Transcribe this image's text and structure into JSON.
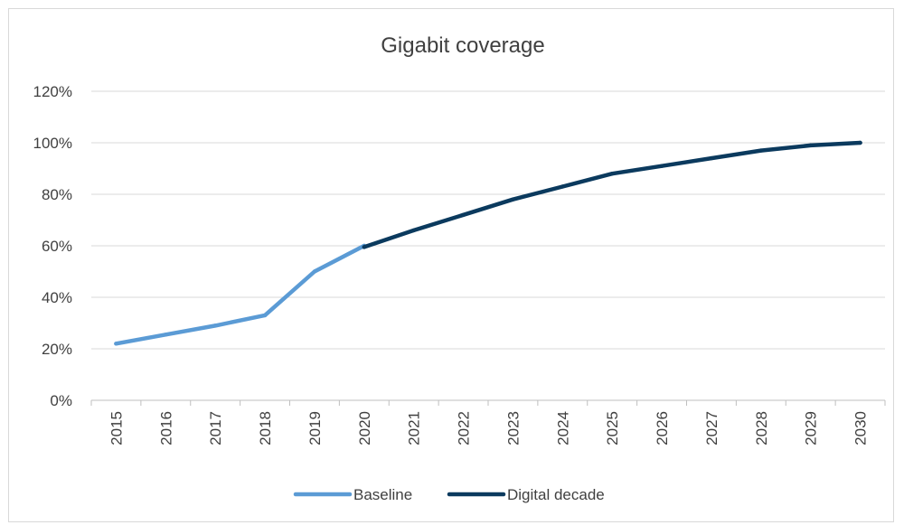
{
  "chart_data": {
    "type": "line",
    "title": "Gigabit coverage",
    "xlabel": "",
    "ylabel": "",
    "categories": [
      "2015",
      "2016",
      "2017",
      "2018",
      "2019",
      "2020",
      "2021",
      "2022",
      "2023",
      "2024",
      "2025",
      "2026",
      "2027",
      "2028",
      "2029",
      "2030"
    ],
    "y_ticks": [
      "0%",
      "20%",
      "40%",
      "60%",
      "80%",
      "100%",
      "120%"
    ],
    "ylim": [
      0,
      120
    ],
    "grid": true,
    "legend_position": "bottom",
    "series": [
      {
        "name": "Baseline",
        "color": "#5b9bd5",
        "values": [
          22,
          25.5,
          29,
          33,
          50,
          60,
          null,
          null,
          null,
          null,
          null,
          null,
          null,
          null,
          null,
          null
        ]
      },
      {
        "name": "Digital decade",
        "color": "#0b3a5e",
        "values": [
          null,
          null,
          null,
          null,
          null,
          59.5,
          66,
          72,
          78,
          83,
          88,
          91,
          94,
          97,
          99,
          100
        ]
      }
    ]
  }
}
